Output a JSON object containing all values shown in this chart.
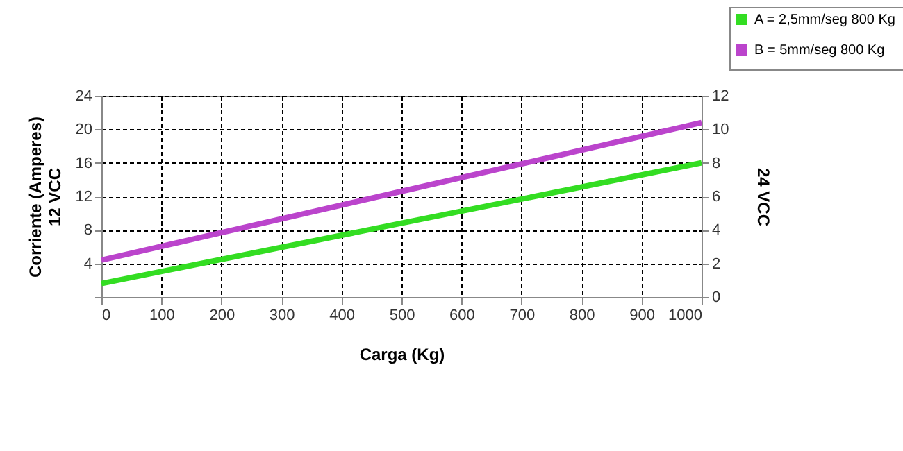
{
  "chart_data": {
    "type": "line",
    "xlabel": "Carga (Kg)",
    "ylabel": "Corriente (Amperes)\n12 VCC",
    "y2label": "24 VCC",
    "x": [
      0,
      500,
      1000
    ],
    "series": [
      {
        "name": "A = 2,5mm/seg 800 Kg",
        "color": "#33dd22",
        "values": [
          1.6,
          8.8,
          16
        ]
      },
      {
        "name": "B = 5mm/seg 800 Kg",
        "color": "#bb44cc",
        "values": [
          4.4,
          12.6,
          20.8
        ]
      }
    ],
    "xlim": [
      0,
      1000
    ],
    "xticks": [
      0,
      100,
      200,
      300,
      400,
      500,
      600,
      700,
      800,
      900,
      1000
    ],
    "ylim": [
      0,
      24
    ],
    "yticks": [
      {
        "value": 0,
        "label": null
      },
      4,
      8,
      12,
      16,
      20,
      24
    ],
    "y2lim": [
      0,
      12
    ],
    "y2ticks": [
      0,
      2,
      4,
      6,
      8,
      10,
      12
    ],
    "grid": true,
    "legend": "top right",
    "marker": "none",
    "line_style": "solid"
  }
}
